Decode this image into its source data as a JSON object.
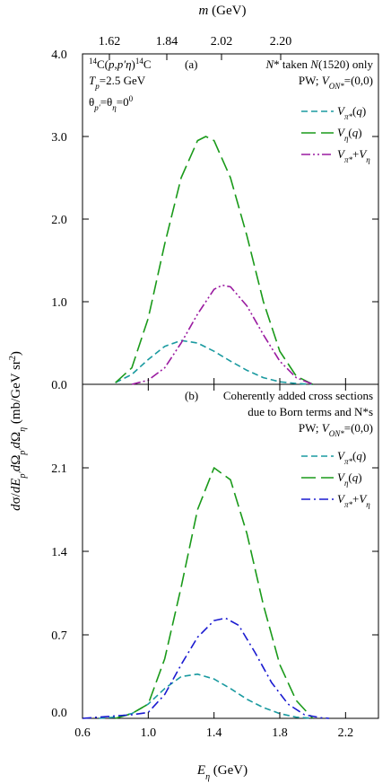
{
  "top_axis": {
    "label": "m (GeV)",
    "ticks": [
      {
        "value": 1.62,
        "label": "1.62"
      },
      {
        "value": 1.84,
        "label": "1.84"
      },
      {
        "value": 2.02,
        "label": "2.02"
      },
      {
        "value": 2.2,
        "label": "2.20"
      }
    ]
  },
  "y_axis_label": "dσ/dE_p′dΩ_p′dΩ_η (mb/GeV sr²)",
  "x_axis": {
    "label": "E_η (GeV)",
    "range": [
      0.6,
      2.4
    ],
    "ticks": [
      {
        "value": 0.6,
        "label": "0.6"
      },
      {
        "value": 1.0,
        "label": "1.0"
      },
      {
        "value": 1.4,
        "label": "1.4"
      },
      {
        "value": 1.8,
        "label": "1.8"
      },
      {
        "value": 2.2,
        "label": "2.2"
      }
    ]
  },
  "panel_a": {
    "tag": "(a)",
    "reaction": "14C(p,p′η)14C",
    "energy": "Tp=2.5 GeV",
    "angles": "θp′=θη=0°",
    "note1": "N* taken N(1520) only",
    "note2": "PW; VON*=(0,0)",
    "legend": [
      "Vπ*(q)",
      "Vη(q)",
      "Vπ*+Vη"
    ]
  },
  "panel_b": {
    "tag": "(b)",
    "note1": "Coherently added cross sections",
    "note2": "due to Born terms and N*s",
    "note3": "PW; VON*=(0,0)",
    "legend": [
      "Vπ*(q)",
      "Vη(q)",
      "Vπ*+Vη"
    ]
  },
  "chart_data": [
    {
      "type": "line",
      "panel": "a",
      "xlabel": "E_η (GeV)",
      "ylabel": "dσ/dE_p′dΩ_p′dΩ_η (mb/GeV sr²)",
      "xlim": [
        0.6,
        2.4
      ],
      "ylim": [
        0,
        4.0
      ],
      "yticks": [
        0.0,
        1.0,
        2.0,
        3.0,
        4.0
      ],
      "ytick_labels": [
        "0.0",
        "1.0",
        "2.0",
        "3.0",
        "4.0"
      ],
      "colors": {
        "Vpi": "#1a9aa0",
        "Veta": "#1a9a1a",
        "sum": "#9a1aa0"
      },
      "series": [
        {
          "name": "Vπ*(q)",
          "style": "dashed",
          "color_key": "Vpi",
          "x": [
            0.8,
            0.9,
            1.0,
            1.1,
            1.2,
            1.3,
            1.4,
            1.5,
            1.6,
            1.7,
            1.8,
            1.9,
            2.0
          ],
          "y": [
            0.02,
            0.12,
            0.3,
            0.46,
            0.53,
            0.5,
            0.4,
            0.28,
            0.17,
            0.08,
            0.03,
            0.01,
            0.0
          ]
        },
        {
          "name": "Vη(q)",
          "style": "longdash",
          "color_key": "Veta",
          "x": [
            0.8,
            0.9,
            1.0,
            1.1,
            1.2,
            1.3,
            1.35,
            1.4,
            1.5,
            1.6,
            1.7,
            1.8,
            1.9,
            2.0
          ],
          "y": [
            0.02,
            0.2,
            0.8,
            1.7,
            2.5,
            2.95,
            3.0,
            2.95,
            2.5,
            1.8,
            1.0,
            0.4,
            0.1,
            0.0
          ]
        },
        {
          "name": "Vπ*+Vη",
          "style": "dashdotdot",
          "color_key": "sum",
          "x": [
            0.9,
            1.0,
            1.1,
            1.2,
            1.3,
            1.4,
            1.45,
            1.5,
            1.6,
            1.7,
            1.8,
            1.9,
            2.0
          ],
          "y": [
            0.0,
            0.05,
            0.2,
            0.5,
            0.85,
            1.15,
            1.2,
            1.18,
            0.95,
            0.6,
            0.28,
            0.08,
            0.0
          ]
        }
      ]
    },
    {
      "type": "line",
      "panel": "b",
      "xlabel": "E_η (GeV)",
      "ylabel": "dσ/dE_p′dΩ_p′dΩ_η (mb/GeV sr²)",
      "xlim": [
        0.6,
        2.4
      ],
      "ylim": [
        0,
        2.8
      ],
      "yticks": [
        0.0,
        0.7,
        1.4,
        2.1
      ],
      "ytick_labels": [
        "0.0",
        "0.7",
        "1.4",
        "2.1"
      ],
      "colors": {
        "Vpi": "#1a9aa0",
        "Veta": "#1a9a1a",
        "sum": "#1a1ad0"
      },
      "series": [
        {
          "name": "Vπ*(q)",
          "style": "dashed",
          "color_key": "Vpi",
          "x": [
            0.7,
            0.8,
            0.9,
            1.0,
            1.1,
            1.2,
            1.3,
            1.4,
            1.5,
            1.6,
            1.7,
            1.8,
            1.9,
            2.0
          ],
          "y": [
            0.0,
            0.01,
            0.04,
            0.12,
            0.25,
            0.35,
            0.37,
            0.33,
            0.25,
            0.16,
            0.09,
            0.04,
            0.01,
            0.0
          ]
        },
        {
          "name": "Vη(q)",
          "style": "longdash",
          "color_key": "Veta",
          "x": [
            0.8,
            0.9,
            1.0,
            1.1,
            1.2,
            1.3,
            1.4,
            1.5,
            1.6,
            1.7,
            1.8,
            1.9,
            2.0
          ],
          "y": [
            0.0,
            0.04,
            0.12,
            0.5,
            1.1,
            1.75,
            2.1,
            2.0,
            1.55,
            0.95,
            0.45,
            0.15,
            0.0
          ]
        },
        {
          "name": "Vπ*+Vη",
          "style": "dashdot",
          "color_key": "sum",
          "x": [
            0.6,
            0.8,
            0.9,
            1.0,
            1.1,
            1.2,
            1.3,
            1.4,
            1.47,
            1.55,
            1.65,
            1.75,
            1.85,
            1.95,
            2.05,
            2.1
          ],
          "y": [
            0.0,
            0.02,
            0.03,
            0.05,
            0.2,
            0.45,
            0.68,
            0.82,
            0.84,
            0.78,
            0.55,
            0.3,
            0.12,
            0.03,
            0.005,
            0.0
          ]
        }
      ]
    }
  ]
}
